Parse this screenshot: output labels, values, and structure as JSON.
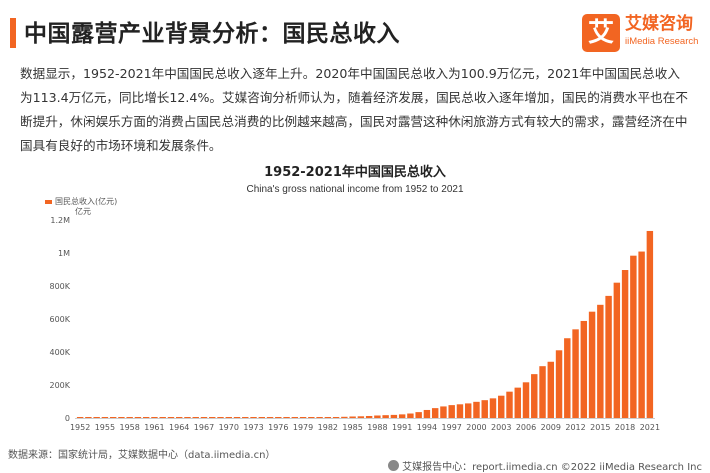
{
  "header": {
    "title": "中国露营产业背景分析：国民总收入"
  },
  "logo": {
    "mark": "艾",
    "name": "艾媒咨询",
    "subtitle": "iiMedia Research"
  },
  "body_text": "数据显示，1952-2021年中国国民总收入逐年上升。2020年中国国民总收入为100.9万亿元，2021年中国国民总收入为113.4万亿元，同比增长12.4%。艾媒咨询分析师认为，随着经济发展，国民总收入逐年增加，国民的消费水平也在不断提升，休闲娱乐方面的消费占国民总消费的比例越来越高，国民对露营这种休闲旅游方式有较大的需求，露营经济在中国具有良好的市场环境和发展条件。",
  "chart_data": {
    "type": "bar",
    "title": "1952-2021年中国国民总收入",
    "subtitle": "China's gross national income from 1952 to 2021",
    "legend": "国民总收入(亿元)",
    "unit": "亿元",
    "legend_position": "top-left",
    "grid": false,
    "ylim": [
      0,
      1200000
    ],
    "y_ticks": [
      0,
      200000,
      400000,
      600000,
      800000,
      1000000,
      1200000
    ],
    "y_tick_labels": [
      "0",
      "200K",
      "400K",
      "600K",
      "800K",
      "1M",
      "1.2M"
    ],
    "x_tick_labels": [
      "1952",
      "1955",
      "1958",
      "1961",
      "1964",
      "1967",
      "1970",
      "1973",
      "1976",
      "1979",
      "1982",
      "1985",
      "1988",
      "1991",
      "1994",
      "1997",
      "2000",
      "2003",
      "2006",
      "2009",
      "2012",
      "2015",
      "2018",
      "2021"
    ],
    "bar_color": "#f26522",
    "x": [
      1952,
      1953,
      1954,
      1955,
      1956,
      1957,
      1958,
      1959,
      1960,
      1961,
      1962,
      1963,
      1964,
      1965,
      1966,
      1967,
      1968,
      1969,
      1970,
      1971,
      1972,
      1973,
      1974,
      1975,
      1976,
      1977,
      1978,
      1979,
      1980,
      1981,
      1982,
      1983,
      1984,
      1985,
      1986,
      1987,
      1988,
      1989,
      1990,
      1991,
      1992,
      1993,
      1994,
      1995,
      1996,
      1997,
      1998,
      1999,
      2000,
      2001,
      2002,
      2003,
      2004,
      2005,
      2006,
      2007,
      2008,
      2009,
      2010,
      2011,
      2012,
      2013,
      2014,
      2015,
      2016,
      2017,
      2018,
      2019,
      2020,
      2021
    ],
    "values": [
      679,
      824,
      859,
      911,
      1030,
      1071,
      1312,
      1447,
      1470,
      1232,
      1162,
      1248,
      1470,
      1734,
      1888,
      1794,
      1744,
      1962,
      2253,
      2427,
      2518,
      2720,
      2789,
      2997,
      2944,
      3202,
      3679,
      4101,
      4588,
      4936,
      5373,
      6021,
      7279,
      9099,
      10376,
      12175,
      15180,
      17180,
      18873,
      22006,
      27195,
      35673,
      48638,
      59811,
      70142,
      78061,
      83024,
      88479,
      98000,
      108068,
      119096,
      135174,
      159587,
      184089,
      216314,
      265810,
      314045,
      340903,
      410354,
      483393,
      537329,
      588141,
      644380,
      685993,
      740061,
      820099,
      896916,
      983751,
      1008782,
      1133518
    ]
  },
  "source": "数据来源：国家统计局，艾媒数据中心（data.iimedia.cn）",
  "footer": "艾媒报告中心：report.iimedia.cn   ©2022  iiMedia Research  Inc"
}
